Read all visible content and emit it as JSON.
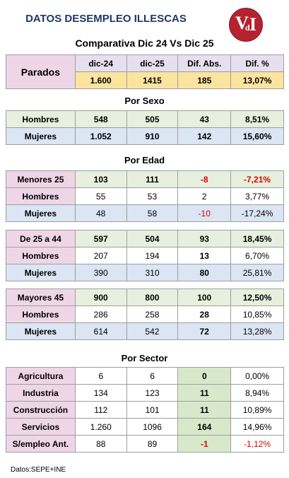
{
  "title": "DATOS DESEMPLEO ILLESCAS",
  "logo": {
    "v": "V",
    "d": "d",
    "i": "I"
  },
  "subtitle": "Comparativa Dic 24 Vs Dic 25",
  "headers": [
    "dic-24",
    "dic-25",
    "Dif. Abs.",
    "Dif. %"
  ],
  "parados": {
    "label": "Parados",
    "dic24": "1.600",
    "dic25": "1415",
    "abs": "185",
    "pct": "13,07%"
  },
  "sexo": {
    "title": "Por Sexo",
    "rows": [
      {
        "label": "Hombres",
        "dic24": "548",
        "dic25": "505",
        "abs": "43",
        "pct": "8,51%"
      },
      {
        "label": "Mujeres",
        "dic24": "1.052",
        "dic25": "910",
        "abs": "142",
        "pct": "15,60%"
      }
    ]
  },
  "edad": {
    "title": "Por Edad",
    "menores": [
      {
        "label": "Menores 25",
        "dic24": "103",
        "dic25": "111",
        "abs": "-8",
        "pct": "-7,21%"
      },
      {
        "label": "Hombres",
        "dic24": "55",
        "dic25": "53",
        "abs": "2",
        "pct": "3,77%"
      },
      {
        "label": "Mujeres",
        "dic24": "48",
        "dic25": "58",
        "abs": "-10",
        "pct": "-17,24%"
      }
    ],
    "medios": [
      {
        "label": "De 25 a 44",
        "dic24": "597",
        "dic25": "504",
        "abs": "93",
        "pct": "18,45%"
      },
      {
        "label": "Hombres",
        "dic24": "207",
        "dic25": "194",
        "abs": "13",
        "pct": "6,70%"
      },
      {
        "label": "Mujeres",
        "dic24": "390",
        "dic25": "310",
        "abs": "80",
        "pct": "25,81%"
      }
    ],
    "mayores": [
      {
        "label": "Mayores 45",
        "dic24": "900",
        "dic25": "800",
        "abs": "100",
        "pct": "12,50%"
      },
      {
        "label": "Hombres",
        "dic24": "286",
        "dic25": "258",
        "abs": "28",
        "pct": "10,85%"
      },
      {
        "label": "Mujeres",
        "dic24": "614",
        "dic25": "542",
        "abs": "72",
        "pct": "13,28%"
      }
    ]
  },
  "sector": {
    "title": "Por Sector",
    "rows": [
      {
        "label": "Agricultura",
        "dic24": "6",
        "dic25": "6",
        "abs": "0",
        "pct": "0,00%"
      },
      {
        "label": "Industria",
        "dic24": "134",
        "dic25": "123",
        "abs": "11",
        "pct": "8,94%"
      },
      {
        "label": "Construcción",
        "dic24": "112",
        "dic25": "101",
        "abs": "11",
        "pct": "10,89%"
      },
      {
        "label": "Servicios",
        "dic24": "1.260",
        "dic25": "1096",
        "abs": "164",
        "pct": "14,96%"
      },
      {
        "label": "S/empleo Ant.",
        "dic24": "88",
        "dic25": "89",
        "abs": "-1",
        "pct": "-1,12%"
      }
    ]
  },
  "footer": "Datos:SEPE+INE",
  "colors": {
    "title": "#1f3864",
    "negative": "#e00000",
    "logo": "#b52330"
  }
}
